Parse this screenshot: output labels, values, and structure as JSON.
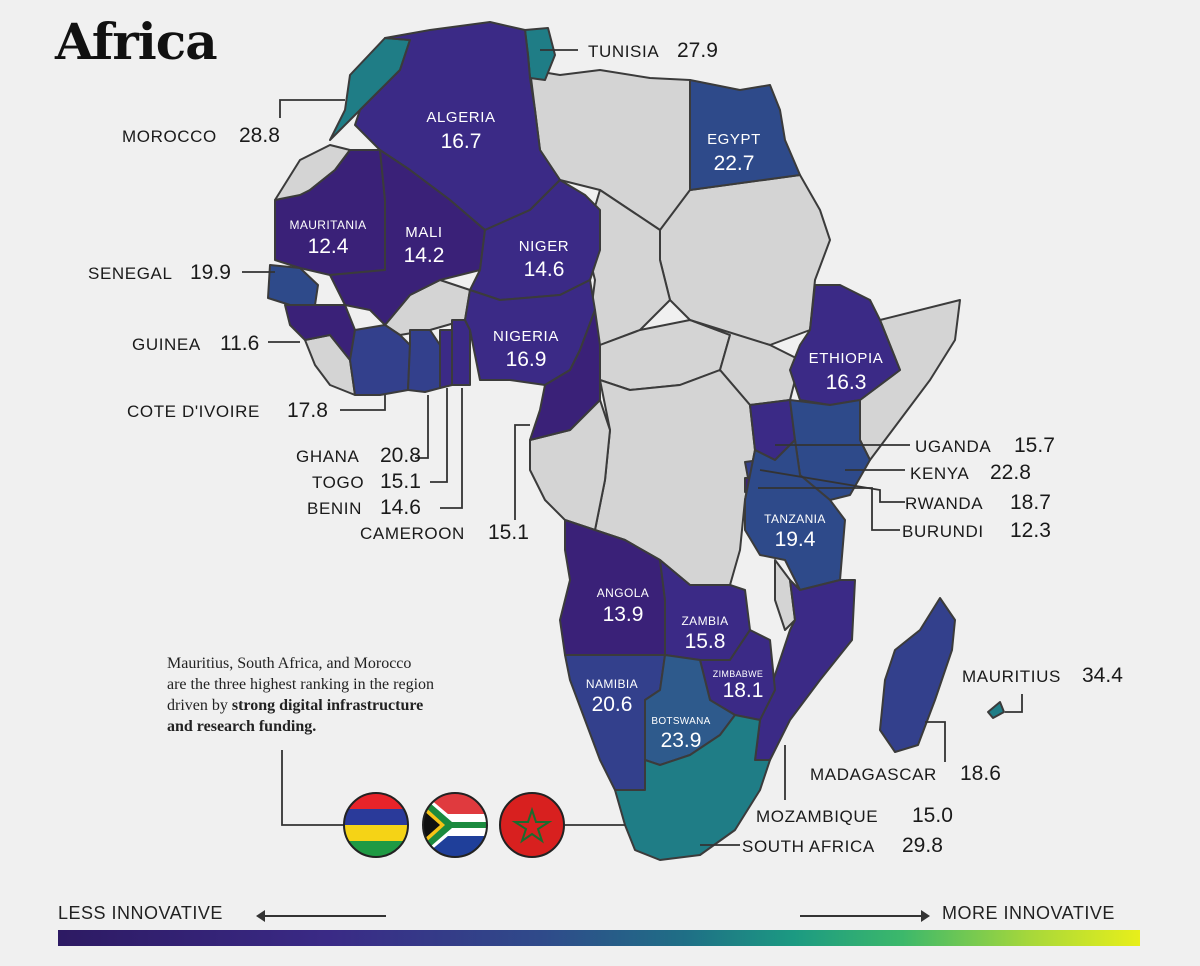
{
  "title": "Africa",
  "note": {
    "line1": "Mauritius, South Africa, and Morocco",
    "line2": "are the three highest ranking in the region",
    "line3_plain": "driven by ",
    "line3_bold": "strong digital infrastructure",
    "line4_bold": "and  research funding."
  },
  "legend": {
    "less": "LESS INNOVATIVE",
    "more": "MORE INNOVATIVE"
  },
  "colors": {
    "no_data": "#d4d4d4",
    "deep_purple": "#3a1f72",
    "purple": "#3d2b8a",
    "blue_purple": "#33408c",
    "blue": "#2e5a8c",
    "teal": "#1f7d86",
    "background": "#f0f0f0"
  },
  "flags": [
    "mauritius-flag",
    "south-africa-flag",
    "morocco-flag"
  ],
  "countries": [
    {
      "id": "tunisia",
      "name": "TUNISIA",
      "value": "27.9"
    },
    {
      "id": "morocco",
      "name": "MOROCCO",
      "value": "28.8"
    },
    {
      "id": "algeria",
      "name": "ALGERIA",
      "value": "16.7"
    },
    {
      "id": "egypt",
      "name": "EGYPT",
      "value": "22.7"
    },
    {
      "id": "mauritania",
      "name": "MAURITANIA",
      "value": "12.4"
    },
    {
      "id": "mali",
      "name": "MALI",
      "value": "14.2"
    },
    {
      "id": "niger",
      "name": "NIGER",
      "value": "14.6"
    },
    {
      "id": "senegal",
      "name": "SENEGAL",
      "value": "19.9"
    },
    {
      "id": "guinea",
      "name": "GUINEA",
      "value": "11.6"
    },
    {
      "id": "nigeria",
      "name": "NIGERIA",
      "value": "16.9"
    },
    {
      "id": "ethiopia",
      "name": "ETHIOPIA",
      "value": "16.3"
    },
    {
      "id": "cote_divoire",
      "name": "COTE D'IVOIRE",
      "value": "17.8"
    },
    {
      "id": "ghana",
      "name": "GHANA",
      "value": "20.8"
    },
    {
      "id": "togo",
      "name": "TOGO",
      "value": "15.1"
    },
    {
      "id": "benin",
      "name": "BENIN",
      "value": "14.6"
    },
    {
      "id": "cameroon",
      "name": "CAMEROON",
      "value": "15.1"
    },
    {
      "id": "uganda",
      "name": "UGANDA",
      "value": "15.7"
    },
    {
      "id": "kenya",
      "name": "KENYA",
      "value": "22.8"
    },
    {
      "id": "rwanda",
      "name": "RWANDA",
      "value": "18.7"
    },
    {
      "id": "burundi",
      "name": "BURUNDI",
      "value": "12.3"
    },
    {
      "id": "tanzania",
      "name": "TANZANIA",
      "value": "19.4"
    },
    {
      "id": "angola",
      "name": "ANGOLA",
      "value": "13.9"
    },
    {
      "id": "zambia",
      "name": "ZAMBIA",
      "value": "15.8"
    },
    {
      "id": "namibia",
      "name": "NAMIBIA",
      "value": "20.6"
    },
    {
      "id": "zimbabwe",
      "name": "ZIMBABWE",
      "value": "18.1"
    },
    {
      "id": "botswana",
      "name": "BOTSWANA",
      "value": "23.9"
    },
    {
      "id": "mauritius",
      "name": "MAURITIUS",
      "value": "34.4"
    },
    {
      "id": "madagascar",
      "name": "MADAGASCAR",
      "value": "18.6"
    },
    {
      "id": "mozambique",
      "name": "MOZAMBIQUE",
      "value": "15.0"
    },
    {
      "id": "south_africa",
      "name": "SOUTH AFRICA",
      "value": "29.8"
    }
  ]
}
